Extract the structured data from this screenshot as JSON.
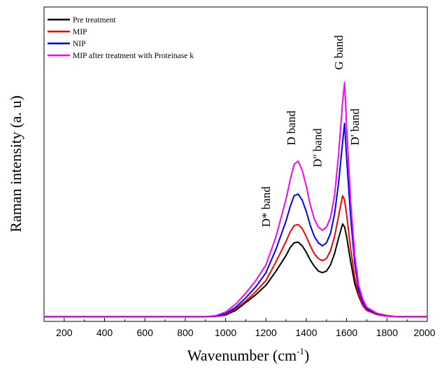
{
  "chart_data": {
    "type": "line",
    "xlabel": "Wavenumber (cm",
    "xlabel_sup": "-1",
    "xlabel_tail": ")",
    "ylabel": "Raman intensity (a. u)",
    "xlim": [
      100,
      2000
    ],
    "ylim": [
      0,
      100
    ],
    "x_ticks": [
      200,
      400,
      600,
      800,
      1000,
      1200,
      1400,
      1600,
      1800,
      2000
    ],
    "y_ticks_shown": false,
    "grid": false,
    "legend_position": "top-left",
    "x": [
      100,
      150,
      200,
      250,
      300,
      350,
      400,
      450,
      500,
      550,
      600,
      650,
      700,
      750,
      800,
      850,
      900,
      950,
      1000,
      1050,
      1100,
      1150,
      1200,
      1250,
      1300,
      1320,
      1340,
      1360,
      1380,
      1400,
      1420,
      1440,
      1460,
      1480,
      1500,
      1520,
      1540,
      1560,
      1580,
      1590,
      1600,
      1620,
      1640,
      1660,
      1680,
      1700,
      1750,
      1800,
      1850,
      1900,
      1950,
      2000
    ],
    "series": [
      {
        "name": "Pre treatment",
        "color": "#000000",
        "values": [
          1.5,
          1.5,
          1.5,
          1.5,
          1.5,
          1.5,
          1.5,
          1.5,
          1.5,
          1.5,
          1.5,
          1.5,
          1.5,
          1.5,
          1.5,
          1.5,
          1.5,
          1.6,
          2.0,
          3.5,
          6.0,
          8.5,
          11.5,
          16.0,
          21.0,
          23.5,
          25.0,
          25.2,
          24.0,
          22.0,
          19.5,
          17.5,
          16.0,
          15.5,
          16.0,
          18.0,
          21.5,
          26.5,
          31.0,
          30.0,
          27.0,
          19.0,
          12.0,
          8.0,
          5.0,
          3.5,
          2.2,
          1.7,
          1.5,
          1.5,
          1.5,
          1.5
        ]
      },
      {
        "name": "MIP",
        "color": "#ff0000",
        "values": [
          1.5,
          1.5,
          1.5,
          1.5,
          1.5,
          1.5,
          1.5,
          1.5,
          1.5,
          1.5,
          1.5,
          1.5,
          1.5,
          1.5,
          1.5,
          1.5,
          1.5,
          1.6,
          2.2,
          4.0,
          6.5,
          9.5,
          13.0,
          19.0,
          25.5,
          28.5,
          30.5,
          30.8,
          29.5,
          27.0,
          24.0,
          21.5,
          20.0,
          19.3,
          20.0,
          22.5,
          27.0,
          33.5,
          40.0,
          38.5,
          34.0,
          23.0,
          14.0,
          8.5,
          5.0,
          3.5,
          2.2,
          1.7,
          1.5,
          1.5,
          1.5,
          1.5
        ]
      },
      {
        "name": "NIP",
        "color": "#0000ff",
        "values": [
          1.5,
          1.5,
          1.5,
          1.5,
          1.5,
          1.5,
          1.5,
          1.5,
          1.5,
          1.5,
          1.5,
          1.5,
          1.5,
          1.5,
          1.5,
          1.5,
          1.5,
          1.7,
          2.5,
          4.5,
          7.5,
          11.0,
          15.5,
          23.0,
          32.0,
          36.5,
          40.0,
          40.5,
          38.5,
          35.0,
          30.5,
          27.0,
          25.0,
          24.0,
          25.0,
          28.0,
          34.0,
          44.0,
          57.0,
          63.0,
          52.0,
          33.0,
          18.5,
          10.0,
          6.0,
          4.0,
          2.4,
          1.8,
          1.5,
          1.5,
          1.5,
          1.5
        ]
      },
      {
        "name": "MIP after treatment with Proteinase k",
        "color": "#ff00ff",
        "values": [
          1.5,
          1.5,
          1.5,
          1.5,
          1.5,
          1.5,
          1.5,
          1.5,
          1.5,
          1.5,
          1.5,
          1.5,
          1.5,
          1.5,
          1.5,
          1.5,
          1.5,
          1.8,
          3.0,
          5.5,
          9.0,
          13.0,
          18.0,
          27.0,
          39.0,
          45.0,
          50.0,
          51.0,
          48.0,
          43.0,
          37.0,
          32.5,
          30.0,
          29.0,
          30.0,
          33.0,
          40.0,
          53.0,
          70.0,
          76.0,
          62.0,
          38.0,
          21.0,
          11.5,
          7.0,
          4.5,
          2.6,
          1.9,
          1.5,
          1.5,
          1.5,
          1.5
        ]
      }
    ],
    "annotations": [
      {
        "text": "D* band",
        "x": 1220,
        "y": 30
      },
      {
        "text": "D band",
        "x": 1345,
        "y": 56
      },
      {
        "text": "D'' band",
        "x": 1475,
        "y": 49
      },
      {
        "text": "G band",
        "x": 1580,
        "y": 80
      },
      {
        "text": "D' band",
        "x": 1660,
        "y": 56
      }
    ]
  }
}
